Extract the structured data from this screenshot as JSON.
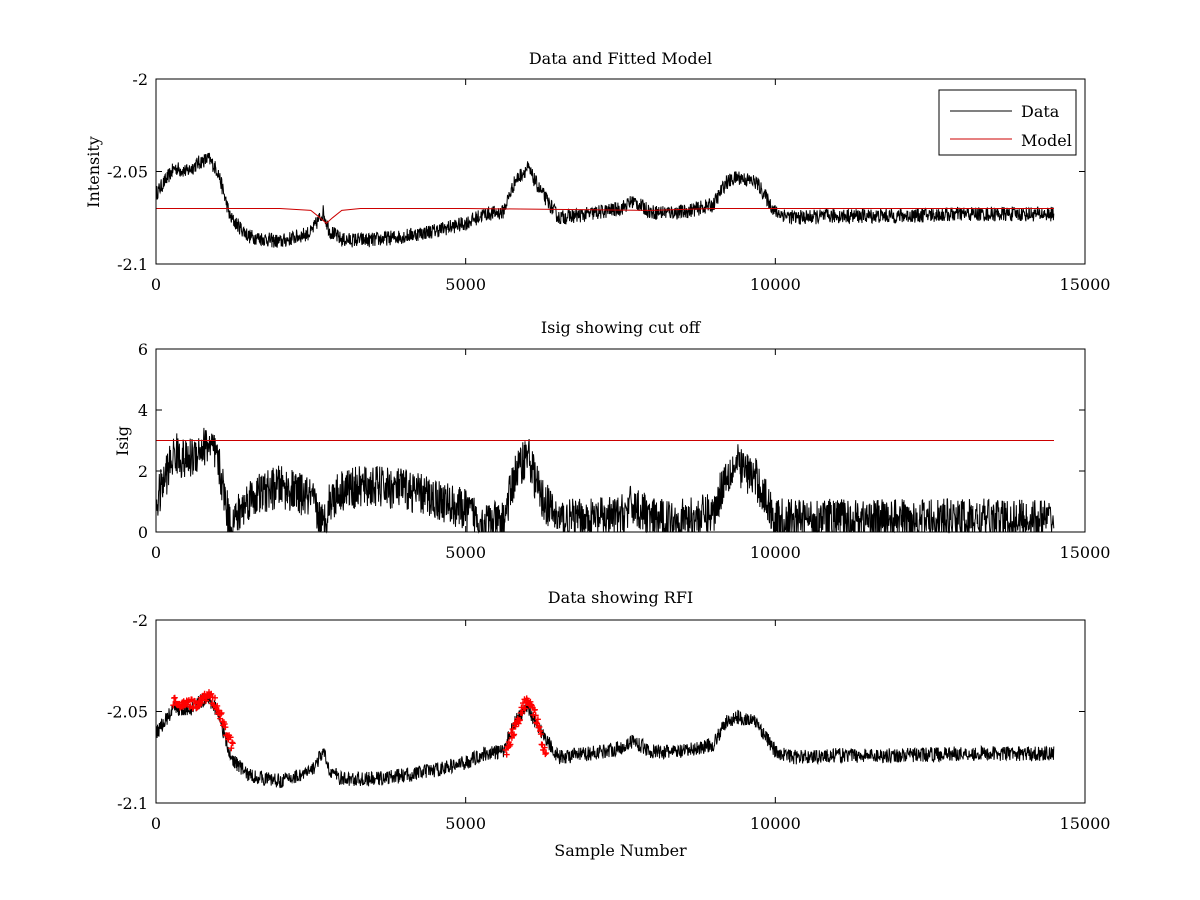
{
  "figure": {
    "background": "#ffffff"
  },
  "colors": {
    "data": "#000000",
    "model": "#cc0000",
    "rfi": "#ff0000"
  },
  "chart_data": [
    {
      "type": "line",
      "title": "Data and Fitted Model",
      "xlabel": "",
      "ylabel": "Intensity",
      "xlim": [
        0,
        15000
      ],
      "ylim": [
        -2.1,
        -2
      ],
      "xticks": [
        0,
        5000,
        10000,
        15000
      ],
      "yticks": [
        -2.1,
        -2.05,
        -2
      ],
      "ytick_labels": [
        "-2.1",
        "-2.05",
        "-2"
      ],
      "legend": {
        "placement": "top-right",
        "entries": [
          "Data",
          "Model"
        ]
      },
      "series": [
        {
          "name": "Data",
          "noise": 0.004,
          "x": [
            0,
            150,
            300,
            500,
            700,
            850,
            1000,
            1200,
            1500,
            2000,
            2500,
            2700,
            2800,
            3000,
            3500,
            4000,
            4500,
            5000,
            5300,
            5600,
            5800,
            6000,
            6200,
            6500,
            7000,
            7500,
            7700,
            8000,
            8500,
            9000,
            9200,
            9400,
            9700,
            10000,
            10300,
            11000,
            12000,
            13000,
            14000,
            14500
          ],
          "values": [
            -2.062,
            -2.055,
            -2.048,
            -2.05,
            -2.045,
            -2.043,
            -2.05,
            -2.075,
            -2.085,
            -2.088,
            -2.083,
            -2.072,
            -2.082,
            -2.087,
            -2.087,
            -2.085,
            -2.082,
            -2.078,
            -2.073,
            -2.072,
            -2.055,
            -2.048,
            -2.06,
            -2.075,
            -2.073,
            -2.07,
            -2.066,
            -2.072,
            -2.072,
            -2.068,
            -2.056,
            -2.053,
            -2.056,
            -2.072,
            -2.075,
            -2.074,
            -2.074,
            -2.073,
            -2.073,
            -2.073
          ]
        },
        {
          "name": "Model",
          "x": [
            0,
            1000,
            1500,
            2000,
            2500,
            2650,
            2750,
            2850,
            3000,
            3300,
            3600,
            5000,
            8000,
            9000,
            10000,
            14500
          ],
          "values": [
            -2.07,
            -2.07,
            -2.07,
            -2.07,
            -2.071,
            -2.075,
            -2.078,
            -2.075,
            -2.071,
            -2.07,
            -2.07,
            -2.07,
            -2.071,
            -2.07,
            -2.07,
            -2.07
          ]
        }
      ]
    },
    {
      "type": "line",
      "title": "Isig showing cut off",
      "xlabel": "",
      "ylabel": "Isig",
      "xlim": [
        0,
        15000
      ],
      "ylim": [
        0,
        6
      ],
      "xticks": [
        0,
        5000,
        10000,
        15000
      ],
      "yticks": [
        0,
        2,
        4,
        6
      ],
      "ytick_labels": [
        "0",
        "2",
        "4",
        "6"
      ],
      "series": [
        {
          "name": "Isig",
          "noise": 0.7,
          "x": [
            0,
            150,
            300,
            500,
            700,
            850,
            1000,
            1200,
            1500,
            2000,
            2500,
            2700,
            2800,
            3000,
            3500,
            4000,
            4500,
            5000,
            5300,
            5600,
            5800,
            6000,
            6200,
            6500,
            7000,
            7500,
            7700,
            8000,
            8500,
            9000,
            9200,
            9400,
            9700,
            10000,
            10300,
            11000,
            12000,
            13000,
            14000,
            14500
          ],
          "values": [
            0.9,
            1.8,
            2.6,
            2.3,
            2.7,
            2.9,
            2.3,
            0.2,
            1.1,
            1.5,
            1.1,
            0.2,
            1.0,
            1.4,
            1.5,
            1.4,
            1.1,
            0.7,
            0.3,
            0.3,
            1.9,
            2.6,
            1.2,
            0.4,
            0.4,
            0.5,
            0.9,
            0.4,
            0.4,
            0.6,
            1.9,
            2.2,
            1.7,
            0.4,
            0.4,
            0.4,
            0.4,
            0.4,
            0.4,
            0.4
          ]
        },
        {
          "name": "Cut off",
          "x": [
            0,
            14500
          ],
          "values": [
            3,
            3
          ]
        }
      ]
    },
    {
      "type": "line",
      "title": "Data showing RFI",
      "xlabel": "Sample Number",
      "ylabel": "",
      "xlim": [
        0,
        15000
      ],
      "ylim": [
        -2.1,
        -2
      ],
      "xticks": [
        0,
        5000,
        10000,
        15000
      ],
      "yticks": [
        -2.1,
        -2.05,
        -2
      ],
      "ytick_labels": [
        "-2.1",
        "-2.05",
        "-2"
      ],
      "series": [
        {
          "name": "Data",
          "noise": 0.004,
          "x": [
            0,
            150,
            300,
            500,
            700,
            850,
            1000,
            1200,
            1500,
            2000,
            2500,
            2700,
            2800,
            3000,
            3500,
            4000,
            4500,
            5000,
            5300,
            5600,
            5800,
            6000,
            6200,
            6500,
            7000,
            7500,
            7700,
            8000,
            8500,
            9000,
            9200,
            9400,
            9700,
            10000,
            10300,
            11000,
            12000,
            13000,
            14000,
            14500
          ],
          "values": [
            -2.062,
            -2.055,
            -2.048,
            -2.05,
            -2.045,
            -2.043,
            -2.05,
            -2.075,
            -2.085,
            -2.088,
            -2.083,
            -2.072,
            -2.082,
            -2.087,
            -2.087,
            -2.085,
            -2.082,
            -2.078,
            -2.073,
            -2.072,
            -2.055,
            -2.048,
            -2.06,
            -2.075,
            -2.073,
            -2.07,
            -2.066,
            -2.072,
            -2.072,
            -2.068,
            -2.056,
            -2.053,
            -2.056,
            -2.072,
            -2.075,
            -2.074,
            -2.074,
            -2.073,
            -2.073,
            -2.073
          ]
        },
        {
          "name": "RFI",
          "marker": "+",
          "noise": 0.003,
          "segments": [
            {
              "x": [
                280,
                450,
                600,
                750,
                850,
                950,
                1050,
                1150,
                1250
              ],
              "values": [
                -2.045,
                -2.047,
                -2.046,
                -2.044,
                -2.04,
                -2.045,
                -2.052,
                -2.062,
                -2.07
              ]
            },
            {
              "x": [
                5650,
                5800,
                5950,
                6050,
                6150,
                6300
              ],
              "values": [
                -2.072,
                -2.058,
                -2.046,
                -2.045,
                -2.055,
                -2.075
              ]
            }
          ]
        }
      ]
    }
  ]
}
